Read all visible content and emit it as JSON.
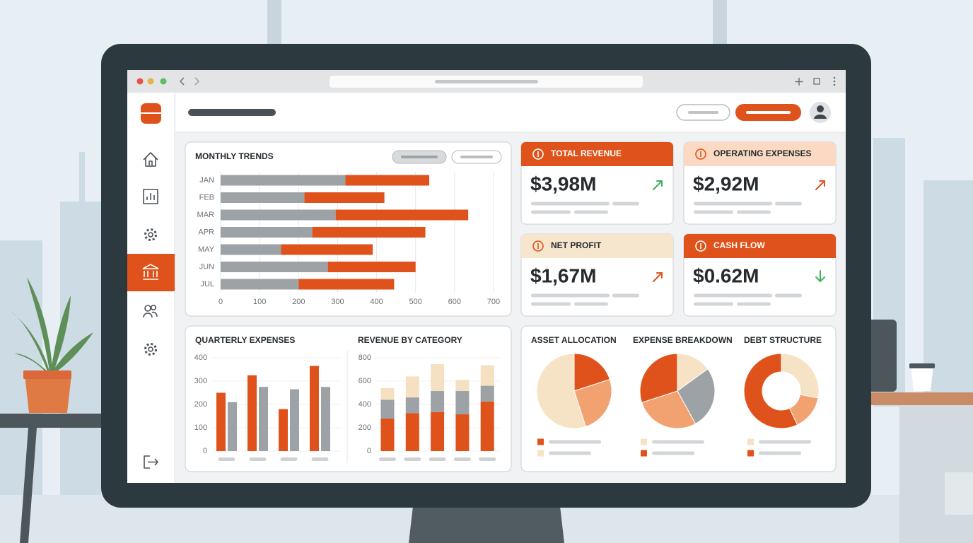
{
  "kpis": [
    {
      "title": "TOTAL REVENUE",
      "value": "$3,98M"
    },
    {
      "title": "OPERATING EXPENSES",
      "value": "$2,92M"
    },
    {
      "title": "NET PROFIT",
      "value": "$1,67M"
    },
    {
      "title": "CASH FLOW",
      "value": "$0.62M"
    }
  ],
  "chart_data": [
    {
      "type": "bar",
      "horizontal": true,
      "stacked": true,
      "title": "MONTHLY TRENDS",
      "categories": [
        "JAN",
        "FEB",
        "MAR",
        "APR",
        "MAY",
        "JUN",
        "JUL"
      ],
      "series": [
        {
          "color": "#9da2a6",
          "values": [
            320,
            215,
            295,
            235,
            155,
            275,
            200
          ]
        },
        {
          "color": "#e0521b",
          "values": [
            215,
            205,
            340,
            290,
            235,
            225,
            245
          ]
        }
      ],
      "xlim": [
        0,
        700
      ],
      "xticks": [
        0,
        100,
        200,
        300,
        400,
        500,
        600,
        700
      ],
      "grid": true
    },
    {
      "type": "bar",
      "horizontal": false,
      "stacked": false,
      "title": "QUARTERLY EXPENSES",
      "categories": [
        null,
        null,
        null,
        null
      ],
      "series": [
        {
          "color": "#e0521b",
          "values": [
            250,
            325,
            180,
            365
          ]
        },
        {
          "color": "#9da2a6",
          "values": [
            210,
            275,
            265,
            275
          ]
        }
      ],
      "ylim": [
        0,
        400
      ],
      "yticks": [
        0,
        100,
        200,
        300,
        400
      ],
      "grid": true
    },
    {
      "type": "bar",
      "horizontal": false,
      "stacked": true,
      "title": "REVENUE BY CATEGORY",
      "categories": [
        null,
        null,
        null,
        null,
        null
      ],
      "series": [
        {
          "color": "#e0521b",
          "values": [
            280,
            325,
            335,
            315,
            425
          ]
        },
        {
          "color": "#9da2a6",
          "values": [
            160,
            135,
            180,
            200,
            135
          ]
        },
        {
          "color": "#f5e0c2",
          "values": [
            100,
            180,
            230,
            95,
            175
          ]
        }
      ],
      "ylim": [
        0,
        800
      ],
      "yticks": [
        0,
        200,
        400,
        600,
        800
      ],
      "grid": true
    },
    {
      "type": "pie",
      "title": "ASSET ALLOCATION",
      "values": [
        20,
        25,
        55
      ],
      "colors": [
        "#e0521b",
        "#f2a271",
        "#f6e2c5"
      ]
    },
    {
      "type": "pie",
      "title": "EXPENSE BREAKDOWN",
      "values": [
        15,
        27,
        28,
        30
      ],
      "colors": [
        "#f6e2c5",
        "#9da2a6",
        "#f2a271",
        "#e0521b"
      ]
    },
    {
      "type": "donut",
      "title": "DEBT STRUCTURE",
      "values": [
        28,
        15,
        57
      ],
      "colors": [
        "#f6e2c5",
        "#f2a271",
        "#e0521b"
      ]
    }
  ]
}
